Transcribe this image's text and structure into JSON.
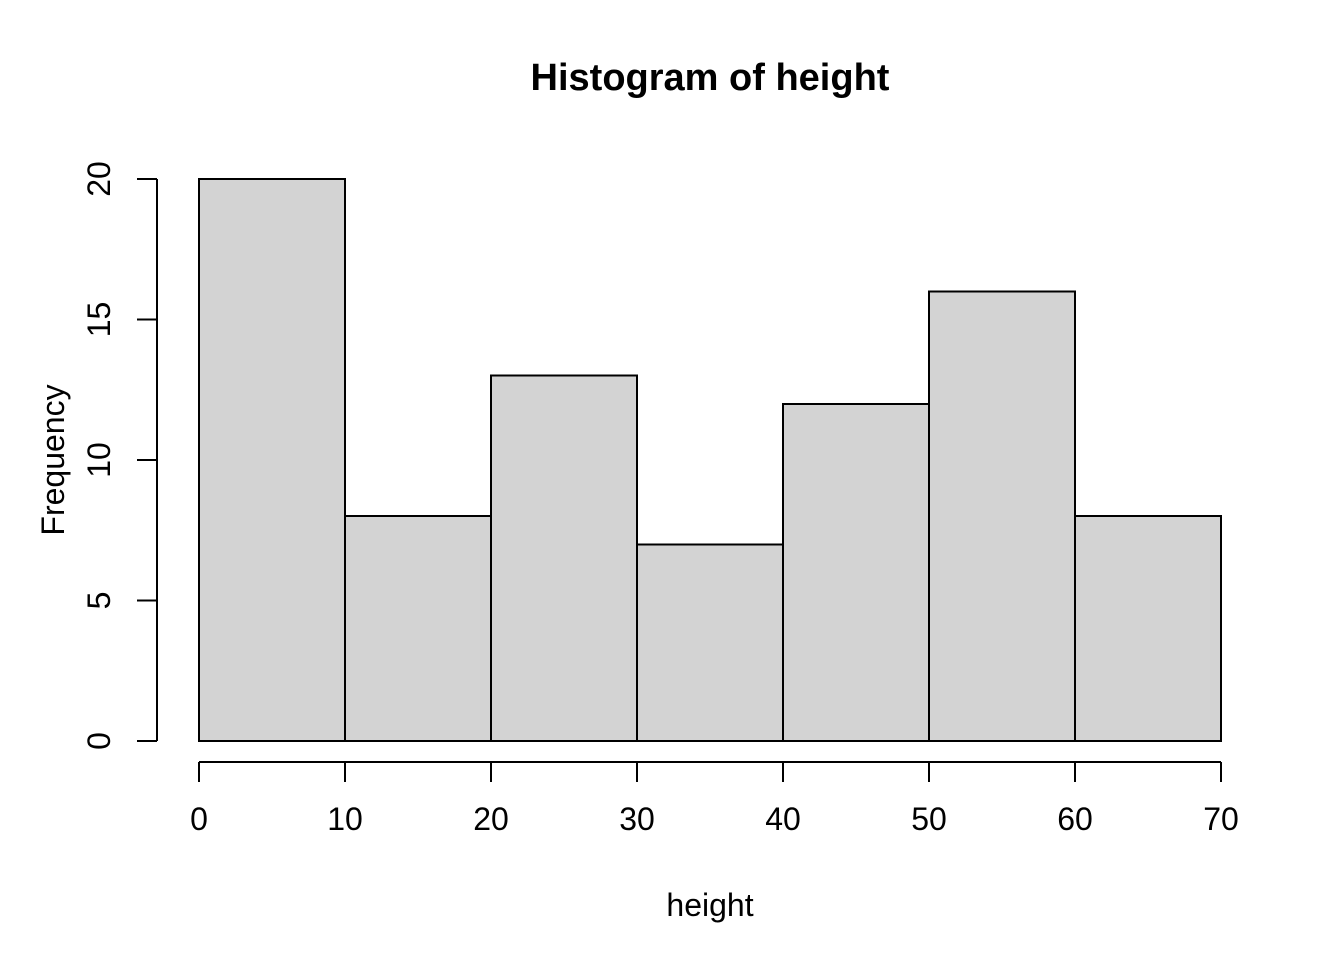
{
  "chart_data": {
    "type": "bar",
    "subtype": "histogram",
    "title": "Histogram of height",
    "xlabel": "height",
    "ylabel": "Frequency",
    "bin_edges": [
      0,
      10,
      20,
      30,
      40,
      50,
      60,
      70
    ],
    "counts": [
      20,
      8,
      13,
      7,
      12,
      16,
      8
    ],
    "x_ticks": [
      0,
      10,
      20,
      30,
      40,
      50,
      60,
      70
    ],
    "y_ticks": [
      0,
      5,
      10,
      15,
      20
    ],
    "xlim": [
      0,
      70
    ],
    "ylim": [
      0,
      20
    ],
    "grid": false,
    "legend": false,
    "colors": {
      "bar_fill": "#D3D3D3",
      "bar_border": "#000000",
      "axis": "#000000",
      "text": "#000000",
      "background": "#FFFFFF"
    }
  }
}
